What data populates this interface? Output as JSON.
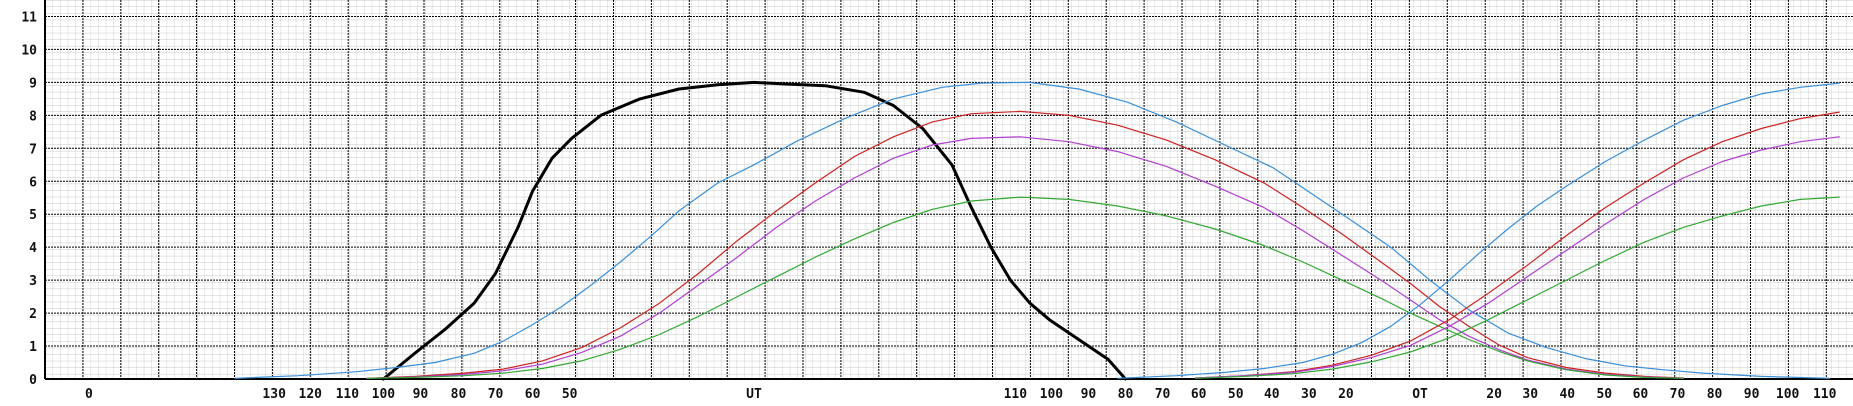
{
  "chart_data": {
    "type": "line",
    "title": "",
    "xlabel": "",
    "ylabel": "",
    "ylim": [
      0,
      11.5
    ],
    "xlim": [
      0,
      1854
    ],
    "grid": true,
    "yticks": [
      {
        "value": 0,
        "label": "0"
      },
      {
        "value": 1,
        "label": "1"
      },
      {
        "value": 2,
        "label": "2"
      },
      {
        "value": 3,
        "label": "3"
      },
      {
        "value": 4,
        "label": "4"
      },
      {
        "value": 5,
        "label": "5"
      },
      {
        "value": 6,
        "label": "6"
      },
      {
        "value": 7,
        "label": "7"
      },
      {
        "value": 8,
        "label": "8"
      },
      {
        "value": 9,
        "label": "9"
      },
      {
        "value": 10,
        "label": "10"
      },
      {
        "value": 11,
        "label": "11"
      }
    ],
    "xticks": [
      {
        "x": 45,
        "label": "0"
      },
      {
        "x": 235,
        "label": "130"
      },
      {
        "x": 272,
        "label": "120"
      },
      {
        "x": 310,
        "label": "110"
      },
      {
        "x": 347,
        "label": "100"
      },
      {
        "x": 385,
        "label": "90"
      },
      {
        "x": 424,
        "label": "80"
      },
      {
        "x": 462,
        "label": "70"
      },
      {
        "x": 500,
        "label": "60"
      },
      {
        "x": 538,
        "label": "50"
      },
      {
        "x": 727,
        "label": "UT"
      },
      {
        "x": 995,
        "label": "110"
      },
      {
        "x": 1032,
        "label": "100"
      },
      {
        "x": 1070,
        "label": "90"
      },
      {
        "x": 1108,
        "label": "80"
      },
      {
        "x": 1146,
        "label": "70"
      },
      {
        "x": 1183,
        "label": "60"
      },
      {
        "x": 1221,
        "label": "50"
      },
      {
        "x": 1258,
        "label": "40"
      },
      {
        "x": 1296,
        "label": "30"
      },
      {
        "x": 1334,
        "label": "20"
      },
      {
        "x": 1410,
        "label": "OT"
      },
      {
        "x": 1486,
        "label": "20"
      },
      {
        "x": 1523,
        "label": "30"
      },
      {
        "x": 1561,
        "label": "40"
      },
      {
        "x": 1599,
        "label": "50"
      },
      {
        "x": 1636,
        "label": "60"
      },
      {
        "x": 1674,
        "label": "70"
      },
      {
        "x": 1712,
        "label": "80"
      },
      {
        "x": 1750,
        "label": "90"
      },
      {
        "x": 1787,
        "label": "100"
      },
      {
        "x": 1825,
        "label": "110"
      }
    ],
    "series": [
      {
        "color": "#000000",
        "width": 3,
        "points": [
          [
            347,
            0
          ],
          [
            380,
            0.8
          ],
          [
            410,
            1.5
          ],
          [
            440,
            2.3
          ],
          [
            462,
            3.2
          ],
          [
            485,
            4.6
          ],
          [
            500,
            5.7
          ],
          [
            520,
            6.7
          ],
          [
            540,
            7.3
          ],
          [
            570,
            8.0
          ],
          [
            610,
            8.5
          ],
          [
            650,
            8.8
          ],
          [
            690,
            8.93
          ],
          [
            727,
            9.0
          ],
          [
            760,
            8.95
          ],
          [
            800,
            8.9
          ],
          [
            840,
            8.7
          ],
          [
            870,
            8.3
          ],
          [
            900,
            7.6
          ],
          [
            930,
            6.5
          ],
          [
            950,
            5.2
          ],
          [
            970,
            4.0
          ],
          [
            990,
            3.0
          ],
          [
            1010,
            2.3
          ],
          [
            1030,
            1.8
          ],
          [
            1060,
            1.2
          ],
          [
            1090,
            0.6
          ],
          [
            1108,
            0.0
          ]
        ]
      },
      {
        "color": "#3a8fd8",
        "width": 1.2,
        "points": [
          [
            195,
            0.02
          ],
          [
            260,
            0.1
          ],
          [
            320,
            0.22
          ],
          [
            360,
            0.35
          ],
          [
            400,
            0.5
          ],
          [
            440,
            0.78
          ],
          [
            470,
            1.15
          ],
          [
            500,
            1.65
          ],
          [
            530,
            2.2
          ],
          [
            560,
            2.85
          ],
          [
            590,
            3.55
          ],
          [
            620,
            4.3
          ],
          [
            650,
            5.1
          ],
          [
            690,
            5.95
          ],
          [
            727,
            6.5
          ],
          [
            770,
            7.2
          ],
          [
            820,
            7.9
          ],
          [
            870,
            8.5
          ],
          [
            920,
            8.85
          ],
          [
            960,
            8.98
          ],
          [
            1010,
            9.0
          ],
          [
            1060,
            8.8
          ],
          [
            1110,
            8.4
          ],
          [
            1160,
            7.8
          ],
          [
            1210,
            7.1
          ],
          [
            1260,
            6.4
          ],
          [
            1300,
            5.6
          ],
          [
            1340,
            4.8
          ],
          [
            1380,
            4.0
          ],
          [
            1420,
            3.0
          ],
          [
            1460,
            2.1
          ],
          [
            1500,
            1.4
          ],
          [
            1540,
            0.95
          ],
          [
            1580,
            0.62
          ],
          [
            1620,
            0.4
          ],
          [
            1660,
            0.28
          ],
          [
            1700,
            0.18
          ],
          [
            1760,
            0.08
          ],
          [
            1830,
            0.02
          ]
        ]
      },
      {
        "color": "#cc2222",
        "width": 1.2,
        "points": [
          [
            330,
            0.02
          ],
          [
            380,
            0.08
          ],
          [
            430,
            0.18
          ],
          [
            470,
            0.3
          ],
          [
            510,
            0.55
          ],
          [
            550,
            0.95
          ],
          [
            590,
            1.55
          ],
          [
            630,
            2.3
          ],
          [
            670,
            3.2
          ],
          [
            710,
            4.2
          ],
          [
            750,
            5.1
          ],
          [
            790,
            5.95
          ],
          [
            830,
            6.75
          ],
          [
            870,
            7.35
          ],
          [
            910,
            7.8
          ],
          [
            950,
            8.05
          ],
          [
            1000,
            8.12
          ],
          [
            1050,
            8.0
          ],
          [
            1100,
            7.7
          ],
          [
            1150,
            7.25
          ],
          [
            1200,
            6.65
          ],
          [
            1250,
            5.95
          ],
          [
            1290,
            5.2
          ],
          [
            1330,
            4.4
          ],
          [
            1370,
            3.55
          ],
          [
            1400,
            2.9
          ],
          [
            1430,
            2.2
          ],
          [
            1460,
            1.6
          ],
          [
            1490,
            1.05
          ],
          [
            1520,
            0.65
          ],
          [
            1560,
            0.35
          ],
          [
            1600,
            0.18
          ],
          [
            1640,
            0.08
          ],
          [
            1680,
            0.03
          ]
        ]
      },
      {
        "color": "#b040d0",
        "width": 1.2,
        "points": [
          [
            330,
            0.02
          ],
          [
            380,
            0.06
          ],
          [
            430,
            0.14
          ],
          [
            470,
            0.25
          ],
          [
            510,
            0.45
          ],
          [
            550,
            0.8
          ],
          [
            590,
            1.3
          ],
          [
            630,
            2.0
          ],
          [
            670,
            2.85
          ],
          [
            710,
            3.7
          ],
          [
            750,
            4.6
          ],
          [
            790,
            5.4
          ],
          [
            830,
            6.1
          ],
          [
            870,
            6.7
          ],
          [
            910,
            7.1
          ],
          [
            950,
            7.3
          ],
          [
            1000,
            7.35
          ],
          [
            1050,
            7.2
          ],
          [
            1100,
            6.9
          ],
          [
            1150,
            6.45
          ],
          [
            1200,
            5.85
          ],
          [
            1250,
            5.2
          ],
          [
            1290,
            4.5
          ],
          [
            1330,
            3.75
          ],
          [
            1370,
            3.0
          ],
          [
            1400,
            2.4
          ],
          [
            1430,
            1.8
          ],
          [
            1460,
            1.3
          ],
          [
            1490,
            0.9
          ],
          [
            1520,
            0.58
          ],
          [
            1560,
            0.3
          ],
          [
            1600,
            0.14
          ],
          [
            1640,
            0.06
          ],
          [
            1680,
            0.02
          ]
        ]
      },
      {
        "color": "#33a833",
        "width": 1.2,
        "points": [
          [
            330,
            0.02
          ],
          [
            380,
            0.05
          ],
          [
            430,
            0.1
          ],
          [
            470,
            0.18
          ],
          [
            510,
            0.32
          ],
          [
            550,
            0.55
          ],
          [
            590,
            0.9
          ],
          [
            630,
            1.35
          ],
          [
            670,
            1.9
          ],
          [
            710,
            2.5
          ],
          [
            750,
            3.1
          ],
          [
            790,
            3.7
          ],
          [
            830,
            4.25
          ],
          [
            870,
            4.75
          ],
          [
            910,
            5.15
          ],
          [
            950,
            5.4
          ],
          [
            1000,
            5.52
          ],
          [
            1050,
            5.45
          ],
          [
            1100,
            5.25
          ],
          [
            1150,
            4.95
          ],
          [
            1200,
            4.55
          ],
          [
            1250,
            4.05
          ],
          [
            1290,
            3.55
          ],
          [
            1330,
            3.0
          ],
          [
            1370,
            2.45
          ],
          [
            1400,
            2.0
          ],
          [
            1430,
            1.6
          ],
          [
            1460,
            1.2
          ],
          [
            1490,
            0.85
          ],
          [
            1520,
            0.55
          ],
          [
            1560,
            0.28
          ],
          [
            1600,
            0.12
          ],
          [
            1640,
            0.05
          ],
          [
            1680,
            0.02
          ]
        ]
      },
      {
        "color": "#3a8fd8",
        "width": 1.2,
        "points": [
          [
            1100,
            0.02
          ],
          [
            1160,
            0.1
          ],
          [
            1210,
            0.2
          ],
          [
            1250,
            0.32
          ],
          [
            1290,
            0.5
          ],
          [
            1320,
            0.75
          ],
          [
            1350,
            1.1
          ],
          [
            1380,
            1.6
          ],
          [
            1410,
            2.25
          ],
          [
            1440,
            3.0
          ],
          [
            1470,
            3.8
          ],
          [
            1500,
            4.55
          ],
          [
            1530,
            5.25
          ],
          [
            1560,
            5.85
          ],
          [
            1600,
            6.6
          ],
          [
            1640,
            7.25
          ],
          [
            1680,
            7.85
          ],
          [
            1720,
            8.3
          ],
          [
            1760,
            8.65
          ],
          [
            1800,
            8.85
          ],
          [
            1840,
            8.98
          ]
        ]
      },
      {
        "color": "#cc2222",
        "width": 1.2,
        "points": [
          [
            1180,
            0.03
          ],
          [
            1230,
            0.1
          ],
          [
            1280,
            0.22
          ],
          [
            1320,
            0.42
          ],
          [
            1360,
            0.72
          ],
          [
            1400,
            1.15
          ],
          [
            1440,
            1.8
          ],
          [
            1480,
            2.6
          ],
          [
            1520,
            3.45
          ],
          [
            1560,
            4.35
          ],
          [
            1600,
            5.2
          ],
          [
            1640,
            5.95
          ],
          [
            1680,
            6.65
          ],
          [
            1720,
            7.2
          ],
          [
            1760,
            7.6
          ],
          [
            1800,
            7.9
          ],
          [
            1840,
            8.1
          ]
        ]
      },
      {
        "color": "#b040d0",
        "width": 1.2,
        "points": [
          [
            1180,
            0.03
          ],
          [
            1230,
            0.1
          ],
          [
            1280,
            0.2
          ],
          [
            1320,
            0.38
          ],
          [
            1360,
            0.65
          ],
          [
            1400,
            1.02
          ],
          [
            1440,
            1.6
          ],
          [
            1480,
            2.3
          ],
          [
            1520,
            3.1
          ],
          [
            1560,
            3.9
          ],
          [
            1600,
            4.7
          ],
          [
            1640,
            5.45
          ],
          [
            1680,
            6.1
          ],
          [
            1720,
            6.6
          ],
          [
            1760,
            6.95
          ],
          [
            1800,
            7.2
          ],
          [
            1840,
            7.35
          ]
        ]
      },
      {
        "color": "#33a833",
        "width": 1.2,
        "points": [
          [
            1180,
            0.02
          ],
          [
            1230,
            0.08
          ],
          [
            1280,
            0.16
          ],
          [
            1320,
            0.3
          ],
          [
            1360,
            0.52
          ],
          [
            1400,
            0.82
          ],
          [
            1440,
            1.25
          ],
          [
            1480,
            1.8
          ],
          [
            1520,
            2.4
          ],
          [
            1560,
            3.0
          ],
          [
            1600,
            3.6
          ],
          [
            1640,
            4.15
          ],
          [
            1680,
            4.6
          ],
          [
            1720,
            4.95
          ],
          [
            1760,
            5.25
          ],
          [
            1800,
            5.45
          ],
          [
            1840,
            5.52
          ]
        ]
      }
    ]
  }
}
